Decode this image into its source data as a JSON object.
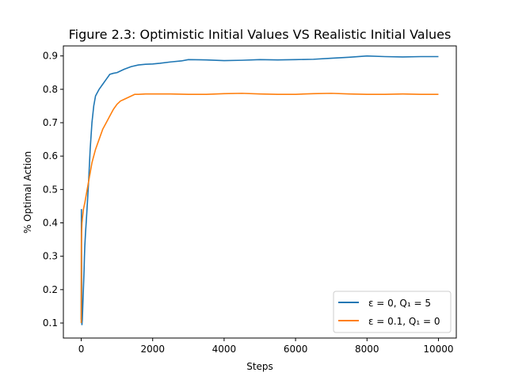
{
  "chart_data": {
    "type": "line",
    "title": "Figure 2.3: Optimistic Initial Values VS Realistic Initial Values",
    "xlabel": "Steps",
    "ylabel": "% Optimal Action",
    "xlim": [
      -500,
      10500
    ],
    "ylim": [
      0.055,
      0.93
    ],
    "xticks": [
      0,
      2000,
      4000,
      6000,
      8000,
      10000
    ],
    "xtick_labels": [
      "0",
      "2000",
      "4000",
      "6000",
      "8000",
      "10000"
    ],
    "yticks": [
      0.1,
      0.2,
      0.3,
      0.4,
      0.5,
      0.6,
      0.7,
      0.8,
      0.9
    ],
    "ytick_labels": [
      "0.1",
      "0.2",
      "0.3",
      "0.4",
      "0.5",
      "0.6",
      "0.7",
      "0.8",
      "0.9"
    ],
    "grid": false,
    "legend_position": "lower-right",
    "series": [
      {
        "name": "ε = 0, Q₁ = 5",
        "color": "#1f77b4",
        "x": [
          0,
          5,
          10,
          15,
          20,
          30,
          40,
          50,
          60,
          70,
          80,
          90,
          100,
          120,
          150,
          200,
          250,
          300,
          350,
          400,
          450,
          500,
          600,
          700,
          800,
          900,
          1000,
          1200,
          1400,
          1600,
          1800,
          2000,
          2200,
          2500,
          2800,
          3000,
          3500,
          4000,
          4500,
          5000,
          5500,
          6000,
          6500,
          7000,
          7500,
          8000,
          8500,
          9000,
          9500,
          10000
        ],
        "y": [
          0.11,
          0.44,
          0.3,
          0.1,
          0.095,
          0.11,
          0.14,
          0.17,
          0.2,
          0.23,
          0.26,
          0.3,
          0.33,
          0.37,
          0.42,
          0.51,
          0.62,
          0.7,
          0.75,
          0.78,
          0.79,
          0.8,
          0.815,
          0.83,
          0.845,
          0.848,
          0.85,
          0.86,
          0.868,
          0.873,
          0.875,
          0.876,
          0.878,
          0.882,
          0.885,
          0.889,
          0.888,
          0.886,
          0.887,
          0.889,
          0.888,
          0.889,
          0.89,
          0.893,
          0.896,
          0.9,
          0.898,
          0.897,
          0.898,
          0.898
        ]
      },
      {
        "name": "ε = 0.1, Q₁ = 0",
        "color": "#ff7f0e",
        "x": [
          0,
          5,
          10,
          20,
          40,
          60,
          80,
          100,
          150,
          200,
          250,
          300,
          400,
          500,
          600,
          700,
          800,
          900,
          1000,
          1100,
          1200,
          1300,
          1400,
          1500,
          1600,
          1800,
          2000,
          2500,
          3000,
          3500,
          4000,
          4500,
          5000,
          5500,
          6000,
          6500,
          7000,
          7500,
          8000,
          8500,
          9000,
          9500,
          10000
        ],
        "y": [
          0.1,
          0.33,
          0.37,
          0.4,
          0.42,
          0.44,
          0.45,
          0.46,
          0.49,
          0.52,
          0.55,
          0.58,
          0.62,
          0.65,
          0.68,
          0.7,
          0.72,
          0.74,
          0.755,
          0.765,
          0.77,
          0.775,
          0.78,
          0.785,
          0.785,
          0.786,
          0.786,
          0.786,
          0.785,
          0.785,
          0.787,
          0.788,
          0.786,
          0.785,
          0.785,
          0.787,
          0.788,
          0.786,
          0.785,
          0.785,
          0.786,
          0.785,
          0.785
        ]
      }
    ]
  }
}
